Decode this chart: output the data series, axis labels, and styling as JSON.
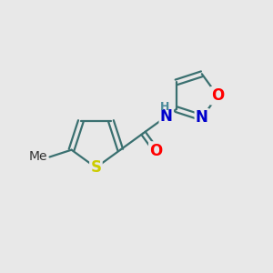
{
  "background_color": "#e8e8e8",
  "bond_color": "#3a7070",
  "bond_width": 1.6,
  "atom_colors": {
    "S": "#cccc00",
    "O": "#ff0000",
    "N": "#0000cc",
    "NH": "#4a8a9a",
    "Me": "#333333"
  },
  "font_size": 12,
  "font_size_h": 9,
  "font_size_me": 10
}
